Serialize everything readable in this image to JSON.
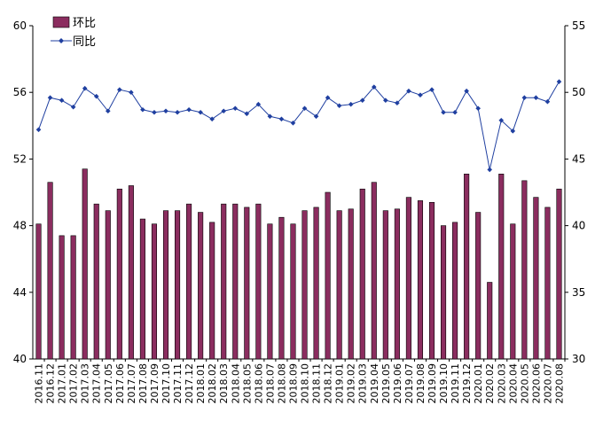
{
  "chart_data": {
    "type": "bar",
    "categories": [
      "2016.11",
      "2016.12",
      "2017.01",
      "2017.02",
      "2017.03",
      "2017.04",
      "2017.05",
      "2017.06",
      "2017.07",
      "2017.08",
      "2017.09",
      "2017.10",
      "2017.11",
      "2017.12",
      "2018.01",
      "2018.02",
      "2018.03",
      "2018.04",
      "2018.05",
      "2018.06",
      "2018.07",
      "2018.08",
      "2018.09",
      "2018.10",
      "2018.11",
      "2018.12",
      "2019.01",
      "2019.02",
      "2019.03",
      "2019.04",
      "2019.05",
      "2019.06",
      "2019.07",
      "2019.08",
      "2019.09",
      "2019.10",
      "2019.11",
      "2019.12",
      "2020.01",
      "2020.02",
      "2020.03",
      "2020.04",
      "2020.05",
      "2020.06",
      "2020.07",
      "2020.08"
    ],
    "series": [
      {
        "name": "环比",
        "type": "bar",
        "axis": "left",
        "color": "#8B2D5F",
        "values": [
          48.1,
          50.6,
          47.4,
          47.4,
          51.4,
          49.3,
          48.9,
          50.2,
          50.4,
          48.4,
          48.1,
          48.9,
          48.9,
          49.3,
          48.8,
          48.2,
          49.3,
          49.3,
          49.1,
          49.3,
          48.1,
          48.5,
          48.1,
          48.9,
          49.1,
          50.0,
          48.9,
          49.0,
          50.2,
          50.6,
          48.9,
          49.0,
          49.7,
          49.5,
          49.4,
          48.0,
          48.2,
          51.1,
          48.8,
          44.6,
          51.1,
          48.1,
          50.7,
          49.7,
          49.1,
          50.2
        ]
      },
      {
        "name": "同比",
        "type": "line",
        "axis": "right",
        "color": "#1F3FA0",
        "values": [
          47.2,
          49.6,
          49.4,
          48.9,
          50.3,
          49.7,
          48.6,
          50.2,
          50.0,
          48.7,
          48.5,
          48.6,
          48.5,
          48.7,
          48.5,
          48.0,
          48.6,
          48.8,
          48.4,
          49.1,
          48.2,
          48.0,
          47.7,
          48.8,
          48.2,
          49.6,
          49.0,
          49.1,
          49.4,
          50.4,
          49.4,
          49.2,
          50.1,
          49.8,
          50.2,
          48.5,
          48.5,
          50.1,
          48.8,
          44.2,
          47.9,
          47.1,
          49.6,
          49.6,
          49.3,
          50.8
        ]
      }
    ],
    "y_left": {
      "min": 40,
      "max": 60,
      "ticks": [
        "40",
        "44",
        "48",
        "52",
        "56",
        "60"
      ]
    },
    "y_right": {
      "min": 30,
      "max": 55,
      "ticks": [
        "30",
        "35",
        "40",
        "45",
        "50",
        "55"
      ]
    },
    "legend": {
      "placement": "top-left"
    },
    "grid": false,
    "title": "",
    "xlabel": "",
    "ylabel": ""
  }
}
